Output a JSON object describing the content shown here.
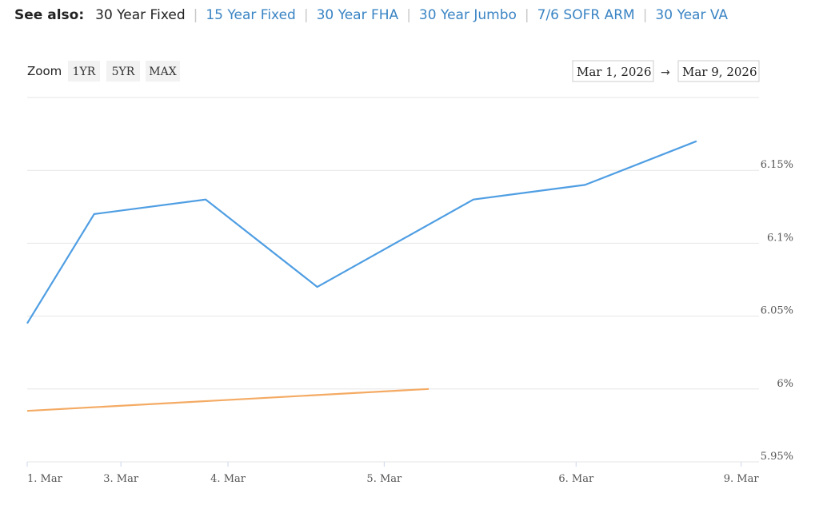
{
  "see_also": {
    "lead": "See also:",
    "items": [
      {
        "label": "30 Year Fixed",
        "current": true
      },
      {
        "label": "15 Year Fixed",
        "current": false
      },
      {
        "label": "30 Year FHA",
        "current": false
      },
      {
        "label": "30 Year Jumbo",
        "current": false
      },
      {
        "label": "7/6 SOFR ARM",
        "current": false
      },
      {
        "label": "30 Year VA",
        "current": false
      }
    ],
    "separator": "|"
  },
  "zoom": {
    "label": "Zoom",
    "buttons": [
      "1YR",
      "5YR",
      "MAX"
    ]
  },
  "date_range": {
    "from": "Mar 1, 2026",
    "arrow": "→",
    "to": "Mar 9, 2026"
  },
  "colors": {
    "series_1": "#4f9ee3",
    "series_2": "#f4aa63"
  },
  "chart_data": {
    "type": "line",
    "y_axis_side": "right",
    "grid": true,
    "ylim": [
      5.95,
      6.2
    ],
    "yticks": [
      {
        "value": 5.95,
        "label": "5.95%"
      },
      {
        "value": 6.0,
        "label": "6%"
      },
      {
        "value": 6.05,
        "label": "6.05%"
      },
      {
        "value": 6.1,
        "label": "6.1%"
      },
      {
        "value": 6.15,
        "label": "6.15%"
      }
    ],
    "xlim": [
      1.0,
      9.2
    ],
    "xticks": [
      {
        "value": 1.0,
        "label": "1. Mar"
      },
      {
        "value": 2.05,
        "label": "3. Mar"
      },
      {
        "value": 3.25,
        "label": "4. Mar"
      },
      {
        "value": 5.0,
        "label": "5. Mar"
      },
      {
        "value": 7.15,
        "label": "6. Mar"
      },
      {
        "value": 9.0,
        "label": "9. Mar"
      }
    ],
    "series": [
      {
        "points": [
          [
            1.0,
            6.045
          ],
          [
            1.75,
            6.12
          ],
          [
            3.0,
            6.13
          ],
          [
            4.25,
            6.07
          ],
          [
            6.0,
            6.13
          ],
          [
            7.25,
            6.14
          ],
          [
            8.5,
            6.17
          ]
        ]
      },
      {
        "points": [
          [
            1.0,
            5.985
          ],
          [
            5.5,
            6.0
          ]
        ]
      }
    ]
  }
}
